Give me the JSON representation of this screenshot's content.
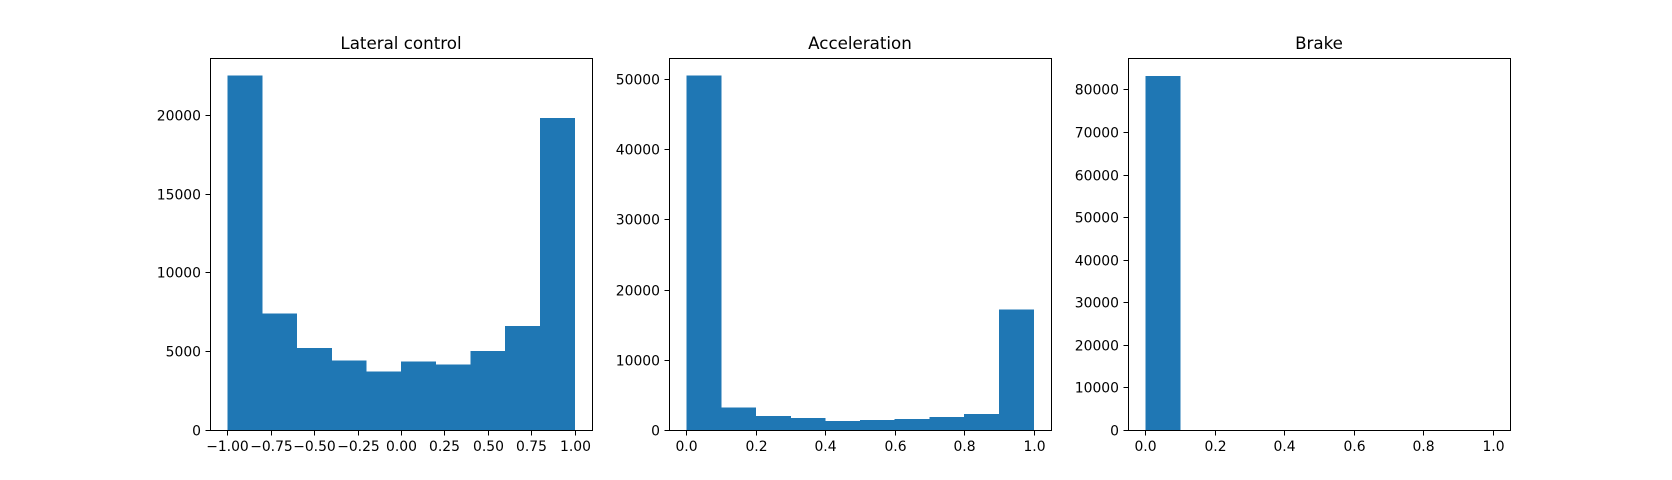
{
  "colors": {
    "bar_fill": "#1f77b4",
    "axis": "#000000",
    "background": "#ffffff"
  },
  "chart_data": [
    {
      "type": "bar",
      "histogram": true,
      "title": "Lateral control",
      "xlabel": "",
      "ylabel": "",
      "bin_edges": [
        -1.0,
        -0.8,
        -0.6,
        -0.4,
        -0.2,
        0.0,
        0.2,
        0.4,
        0.6,
        0.8,
        1.0
      ],
      "values": [
        22500,
        7400,
        5200,
        4400,
        3700,
        4350,
        4150,
        5000,
        6600,
        19800
      ],
      "xlim": [
        -1.1,
        1.1
      ],
      "ylim": [
        0,
        23600
      ],
      "xticks": [
        -1.0,
        -0.75,
        -0.5,
        -0.25,
        0.0,
        0.25,
        0.5,
        0.75,
        1.0
      ],
      "xtick_labels": [
        "−1.00",
        "−0.75",
        "−0.50",
        "−0.25",
        "0.00",
        "0.25",
        "0.50",
        "0.75",
        "1.00"
      ],
      "yticks": [
        0,
        5000,
        10000,
        15000,
        20000
      ],
      "ytick_labels": [
        "0",
        "5000",
        "10000",
        "15000",
        "20000"
      ],
      "grid": false
    },
    {
      "type": "bar",
      "histogram": true,
      "title": "Acceleration",
      "xlabel": "",
      "ylabel": "",
      "bin_edges": [
        0.0,
        0.1,
        0.2,
        0.3,
        0.4,
        0.5,
        0.6,
        0.7,
        0.8,
        0.9,
        1.0
      ],
      "values": [
        50500,
        3200,
        2000,
        1700,
        1300,
        1400,
        1550,
        1850,
        2300,
        17200
      ],
      "xlim": [
        -0.05,
        1.05
      ],
      "ylim": [
        0,
        53000
      ],
      "xticks": [
        0.0,
        0.2,
        0.4,
        0.6,
        0.8,
        1.0
      ],
      "xtick_labels": [
        "0.0",
        "0.2",
        "0.4",
        "0.6",
        "0.8",
        "1.0"
      ],
      "yticks": [
        0,
        10000,
        20000,
        30000,
        40000,
        50000
      ],
      "ytick_labels": [
        "0",
        "10000",
        "20000",
        "30000",
        "40000",
        "50000"
      ],
      "grid": false
    },
    {
      "type": "bar",
      "histogram": true,
      "title": "Brake",
      "xlabel": "",
      "ylabel": "",
      "bin_edges": [
        0.0,
        0.1,
        0.2,
        0.3,
        0.4,
        0.5,
        0.6,
        0.7,
        0.8,
        0.9,
        1.0
      ],
      "values": [
        83200,
        0,
        0,
        0,
        0,
        0,
        0,
        0,
        0,
        0
      ],
      "xlim": [
        -0.05,
        1.05
      ],
      "ylim": [
        0,
        87400
      ],
      "xticks": [
        0.0,
        0.2,
        0.4,
        0.6,
        0.8,
        1.0
      ],
      "xtick_labels": [
        "0.0",
        "0.2",
        "0.4",
        "0.6",
        "0.8",
        "1.0"
      ],
      "yticks": [
        0,
        10000,
        20000,
        30000,
        40000,
        50000,
        60000,
        70000,
        80000
      ],
      "ytick_labels": [
        "0",
        "10000",
        "20000",
        "30000",
        "40000",
        "50000",
        "60000",
        "70000",
        "80000"
      ],
      "grid": false
    }
  ]
}
